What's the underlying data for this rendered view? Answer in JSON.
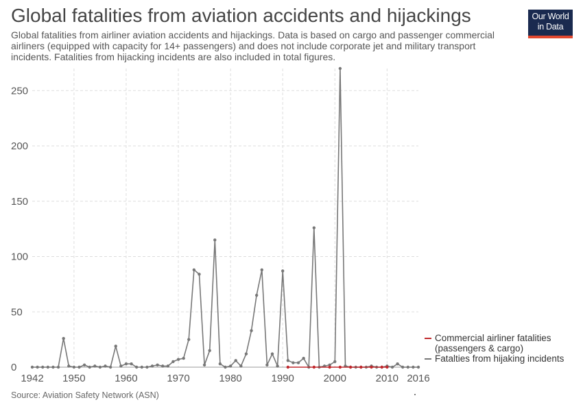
{
  "header": {
    "title": "Global fatalities from aviation accidents and hijackings",
    "subtitle": "Global fatalities from airliner aviation accidents and hijackings. Data is based on cargo and passenger commercial airliners (equipped with capacity for 14+ passengers) and does not include corporate jet and military transport incidents. Fatalities from hijacking incidents are also included in total figures."
  },
  "logo": {
    "line1": "Our World",
    "line2": "in Data",
    "colors": {
      "bg": "#1a2a4f",
      "accent": "#e2482f"
    }
  },
  "footer": {
    "source": "Source: Aviation Safety Network (ASN)"
  },
  "chart_data": {
    "type": "line",
    "xlim": [
      1942,
      2016
    ],
    "ylim": [
      0,
      270
    ],
    "x_ticks": [
      1942,
      1950,
      1960,
      1970,
      1980,
      1990,
      2000,
      2010,
      2016
    ],
    "y_ticks": [
      0,
      50,
      100,
      150,
      200,
      250
    ],
    "grid": true,
    "legend_position": "right",
    "series": [
      {
        "name": "Commercial airliner fatalities (passengers & cargo)",
        "color": "#c0282d",
        "x": [
          1991,
          1996,
          1999,
          2001,
          2003,
          2005,
          2007,
          2009,
          2010
        ],
        "values": [
          0,
          0,
          0,
          0,
          0,
          0,
          0,
          0,
          0
        ]
      },
      {
        "name": "Fatalties from hijaking incidents",
        "color": "#777777",
        "x": [
          1942,
          1943,
          1944,
          1945,
          1946,
          1947,
          1948,
          1949,
          1950,
          1951,
          1952,
          1953,
          1954,
          1955,
          1956,
          1957,
          1958,
          1959,
          1960,
          1961,
          1962,
          1963,
          1964,
          1965,
          1966,
          1967,
          1968,
          1969,
          1970,
          1971,
          1972,
          1973,
          1974,
          1975,
          1976,
          1977,
          1978,
          1979,
          1980,
          1981,
          1982,
          1983,
          1984,
          1985,
          1986,
          1987,
          1988,
          1989,
          1990,
          1991,
          1992,
          1993,
          1994,
          1995,
          1996,
          1997,
          1998,
          1999,
          2000,
          2001,
          2002,
          2003,
          2004,
          2005,
          2006,
          2007,
          2008,
          2009,
          2010,
          2011,
          2012,
          2013,
          2014,
          2015,
          2016
        ],
        "values": [
          0,
          0,
          0,
          0,
          0,
          0,
          26,
          1,
          0,
          0,
          2,
          0,
          1,
          0,
          1,
          0,
          19,
          1,
          3,
          3,
          0,
          0,
          0,
          1,
          2,
          1,
          1,
          5,
          7,
          8,
          25,
          88,
          84,
          2,
          15,
          115,
          3,
          0,
          1,
          6,
          1,
          12,
          33,
          65,
          88,
          2,
          12,
          1,
          87,
          6,
          4,
          4,
          8,
          0,
          126,
          0,
          1,
          2,
          5,
          270,
          1,
          0,
          0,
          0,
          0,
          1,
          0,
          0,
          1,
          0,
          3,
          0,
          0,
          0,
          0
        ]
      }
    ]
  }
}
